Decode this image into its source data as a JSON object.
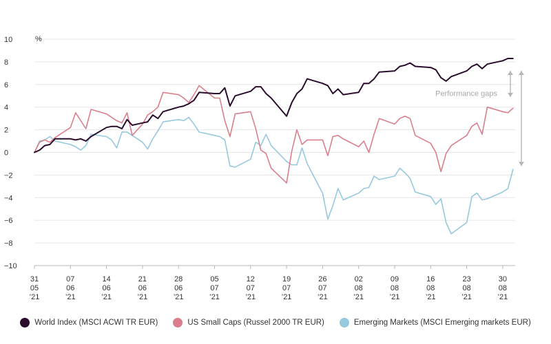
{
  "chart_data": {
    "type": "line",
    "unit": "%",
    "ylim": [
      -10,
      10
    ],
    "yticks": [
      "10",
      "8",
      "6",
      "4",
      "2",
      "0",
      "−2",
      "−4",
      "−6",
      "−8",
      "−10"
    ],
    "grid": true,
    "legend_position": "bottom",
    "x_tick_labels": [
      [
        "31",
        "05",
        "’21"
      ],
      [
        "07",
        "06",
        "’21"
      ],
      [
        "14",
        "06",
        "’21"
      ],
      [
        "21",
        "06",
        "’21"
      ],
      [
        "28",
        "06",
        "’21"
      ],
      [
        "05",
        "07",
        "’21"
      ],
      [
        "12",
        "07",
        "’21"
      ],
      [
        "19",
        "07",
        "’21"
      ],
      [
        "26",
        "07",
        "’21"
      ],
      [
        "02",
        "08",
        "’21"
      ],
      [
        "09",
        "08",
        "’21"
      ],
      [
        "16",
        "08",
        "’21"
      ],
      [
        "23",
        "08",
        "’21"
      ],
      [
        "30",
        "08",
        "’21"
      ]
    ],
    "annotation": "Performance gaps",
    "series": [
      {
        "name": "World Index (MSCI ACWI TR EUR)",
        "color": "#2a0c2c",
        "points": [
          [
            "2021-05-31",
            0.0
          ],
          [
            "2021-06-01",
            0.2
          ],
          [
            "2021-06-02",
            0.6
          ],
          [
            "2021-06-03",
            0.7
          ],
          [
            "2021-06-04",
            1.2
          ],
          [
            "2021-06-07",
            1.2
          ],
          [
            "2021-06-08",
            1.1
          ],
          [
            "2021-06-09",
            1.2
          ],
          [
            "2021-06-10",
            1.0
          ],
          [
            "2021-06-11",
            1.4
          ],
          [
            "2021-06-14",
            2.2
          ],
          [
            "2021-06-15",
            2.3
          ],
          [
            "2021-06-16",
            2.3
          ],
          [
            "2021-06-17",
            2.1
          ],
          [
            "2021-06-18",
            2.9
          ],
          [
            "2021-06-19",
            2.4
          ],
          [
            "2021-06-21",
            2.6
          ],
          [
            "2021-06-22",
            2.7
          ],
          [
            "2021-06-23",
            3.3
          ],
          [
            "2021-06-24",
            3.0
          ],
          [
            "2021-06-25",
            3.6
          ],
          [
            "2021-06-28",
            4.0
          ],
          [
            "2021-06-29",
            4.1
          ],
          [
            "2021-06-30",
            4.3
          ],
          [
            "2021-07-01",
            4.6
          ],
          [
            "2021-07-02",
            5.3
          ],
          [
            "2021-07-05",
            5.2
          ],
          [
            "2021-07-06",
            5.2
          ],
          [
            "2021-07-07",
            5.7
          ],
          [
            "2021-07-08",
            4.1
          ],
          [
            "2021-07-09",
            5.0
          ],
          [
            "2021-07-12",
            5.4
          ],
          [
            "2021-07-13",
            5.8
          ],
          [
            "2021-07-14",
            5.8
          ],
          [
            "2021-07-15",
            5.2
          ],
          [
            "2021-07-16",
            4.8
          ],
          [
            "2021-07-19",
            3.2
          ],
          [
            "2021-07-20",
            4.4
          ],
          [
            "2021-07-21",
            5.2
          ],
          [
            "2021-07-22",
            5.6
          ],
          [
            "2021-07-23",
            6.5
          ],
          [
            "2021-07-26",
            6.1
          ],
          [
            "2021-07-27",
            5.9
          ],
          [
            "2021-07-28",
            5.2
          ],
          [
            "2021-07-29",
            5.6
          ],
          [
            "2021-07-30",
            5.1
          ],
          [
            "2021-08-02",
            5.3
          ],
          [
            "2021-08-03",
            6.1
          ],
          [
            "2021-08-04",
            6.1
          ],
          [
            "2021-08-05",
            6.5
          ],
          [
            "2021-08-06",
            7.1
          ],
          [
            "2021-08-09",
            7.2
          ],
          [
            "2021-08-10",
            7.6
          ],
          [
            "2021-08-11",
            7.7
          ],
          [
            "2021-08-12",
            7.9
          ],
          [
            "2021-08-13",
            7.6
          ],
          [
            "2021-08-16",
            7.5
          ],
          [
            "2021-08-17",
            7.3
          ],
          [
            "2021-08-18",
            6.6
          ],
          [
            "2021-08-19",
            6.3
          ],
          [
            "2021-08-20",
            6.7
          ],
          [
            "2021-08-23",
            7.2
          ],
          [
            "2021-08-24",
            7.6
          ],
          [
            "2021-08-25",
            7.8
          ],
          [
            "2021-08-26",
            7.4
          ],
          [
            "2021-08-27",
            7.8
          ],
          [
            "2021-08-30",
            8.1
          ],
          [
            "2021-08-31",
            8.3
          ],
          [
            "2021-09-01",
            8.3
          ]
        ]
      },
      {
        "name": "US Small Caps (Russel 2000 TR EUR)",
        "color": "#d97f8c",
        "points": [
          [
            "2021-05-31",
            0.0
          ],
          [
            "2021-06-01",
            0.9
          ],
          [
            "2021-06-02",
            1.1
          ],
          [
            "2021-06-03",
            0.9
          ],
          [
            "2021-06-04",
            1.3
          ],
          [
            "2021-06-07",
            2.2
          ],
          [
            "2021-06-08",
            3.5
          ],
          [
            "2021-06-10",
            2.1
          ],
          [
            "2021-06-11",
            3.8
          ],
          [
            "2021-06-14",
            3.4
          ],
          [
            "2021-06-16",
            2.8
          ],
          [
            "2021-06-17",
            2.6
          ],
          [
            "2021-06-18",
            3.5
          ],
          [
            "2021-06-19",
            1.5
          ],
          [
            "2021-06-21",
            2.5
          ],
          [
            "2021-06-22",
            3.3
          ],
          [
            "2021-06-23",
            3.6
          ],
          [
            "2021-06-24",
            4.0
          ],
          [
            "2021-06-25",
            5.3
          ],
          [
            "2021-06-28",
            5.1
          ],
          [
            "2021-06-29",
            4.8
          ],
          [
            "2021-06-30",
            4.4
          ],
          [
            "2021-07-01",
            5.1
          ],
          [
            "2021-07-02",
            5.9
          ],
          [
            "2021-07-05",
            4.8
          ],
          [
            "2021-07-06",
            4.8
          ],
          [
            "2021-07-07",
            2.8
          ],
          [
            "2021-07-08",
            1.4
          ],
          [
            "2021-07-09",
            3.4
          ],
          [
            "2021-07-12",
            3.6
          ],
          [
            "2021-07-13",
            2.1
          ],
          [
            "2021-07-14",
            0.2
          ],
          [
            "2021-07-15",
            -0.1
          ],
          [
            "2021-07-16",
            -1.4
          ],
          [
            "2021-07-19",
            -2.7
          ],
          [
            "2021-07-20",
            0.1
          ],
          [
            "2021-07-21",
            2.0
          ],
          [
            "2021-07-22",
            0.7
          ],
          [
            "2021-07-23",
            1.1
          ],
          [
            "2021-07-26",
            1.1
          ],
          [
            "2021-07-27",
            -0.3
          ],
          [
            "2021-07-28",
            1.4
          ],
          [
            "2021-07-29",
            1.5
          ],
          [
            "2021-07-30",
            1.2
          ],
          [
            "2021-08-02",
            0.5
          ],
          [
            "2021-08-03",
            1.0
          ],
          [
            "2021-08-04",
            0.0
          ],
          [
            "2021-08-05",
            1.6
          ],
          [
            "2021-08-06",
            3.0
          ],
          [
            "2021-08-09",
            2.5
          ],
          [
            "2021-08-10",
            3.0
          ],
          [
            "2021-08-11",
            3.2
          ],
          [
            "2021-08-12",
            3.0
          ],
          [
            "2021-08-13",
            1.5
          ],
          [
            "2021-08-16",
            0.8
          ],
          [
            "2021-08-17",
            0.0
          ],
          [
            "2021-08-18",
            -1.7
          ],
          [
            "2021-08-19",
            -0.1
          ],
          [
            "2021-08-20",
            0.6
          ],
          [
            "2021-08-23",
            1.5
          ],
          [
            "2021-08-24",
            2.3
          ],
          [
            "2021-08-25",
            2.6
          ],
          [
            "2021-08-26",
            1.6
          ],
          [
            "2021-08-27",
            4.0
          ],
          [
            "2021-08-30",
            3.6
          ],
          [
            "2021-08-31",
            3.5
          ],
          [
            "2021-09-01",
            3.9
          ]
        ]
      },
      {
        "name": "Emerging Markets (MSCI Emerging markets EUR)",
        "color": "#96c8de",
        "points": [
          [
            "2021-05-31",
            0.0
          ],
          [
            "2021-06-01",
            1.0
          ],
          [
            "2021-06-02",
            1.1
          ],
          [
            "2021-06-03",
            1.4
          ],
          [
            "2021-06-04",
            1.0
          ],
          [
            "2021-06-07",
            0.7
          ],
          [
            "2021-06-08",
            0.5
          ],
          [
            "2021-06-09",
            0.2
          ],
          [
            "2021-06-10",
            0.6
          ],
          [
            "2021-06-11",
            1.6
          ],
          [
            "2021-06-14",
            1.4
          ],
          [
            "2021-06-15",
            1.1
          ],
          [
            "2021-06-16",
            0.4
          ],
          [
            "2021-06-17",
            1.8
          ],
          [
            "2021-06-18",
            1.8
          ],
          [
            "2021-06-21",
            0.9
          ],
          [
            "2021-06-22",
            0.3
          ],
          [
            "2021-06-23",
            1.2
          ],
          [
            "2021-06-24",
            1.9
          ],
          [
            "2021-06-25",
            2.7
          ],
          [
            "2021-06-28",
            2.9
          ],
          [
            "2021-06-29",
            2.8
          ],
          [
            "2021-06-30",
            3.1
          ],
          [
            "2021-07-01",
            2.5
          ],
          [
            "2021-07-02",
            1.8
          ],
          [
            "2021-07-05",
            1.5
          ],
          [
            "2021-07-06",
            1.4
          ],
          [
            "2021-07-07",
            1.1
          ],
          [
            "2021-07-08",
            -1.2
          ],
          [
            "2021-07-09",
            -1.3
          ],
          [
            "2021-07-12",
            -0.6
          ],
          [
            "2021-07-13",
            0.9
          ],
          [
            "2021-07-14",
            0.6
          ],
          [
            "2021-07-15",
            1.6
          ],
          [
            "2021-07-16",
            0.6
          ],
          [
            "2021-07-19",
            -0.8
          ],
          [
            "2021-07-20",
            -1.1
          ],
          [
            "2021-07-21",
            -1.1
          ],
          [
            "2021-07-22",
            0.4
          ],
          [
            "2021-07-23",
            -1.0
          ],
          [
            "2021-07-26",
            -3.6
          ],
          [
            "2021-07-27",
            -5.9
          ],
          [
            "2021-07-28",
            -4.7
          ],
          [
            "2021-07-29",
            -3.2
          ],
          [
            "2021-07-30",
            -4.2
          ],
          [
            "2021-08-02",
            -3.6
          ],
          [
            "2021-08-03",
            -3.2
          ],
          [
            "2021-08-04",
            -3.1
          ],
          [
            "2021-08-05",
            -2.1
          ],
          [
            "2021-08-06",
            -2.4
          ],
          [
            "2021-08-09",
            -2.1
          ],
          [
            "2021-08-10",
            -1.4
          ],
          [
            "2021-08-11",
            -1.8
          ],
          [
            "2021-08-12",
            -2.3
          ],
          [
            "2021-08-13",
            -3.5
          ],
          [
            "2021-08-16",
            -3.9
          ],
          [
            "2021-08-17",
            -4.6
          ],
          [
            "2021-08-18",
            -4.1
          ],
          [
            "2021-08-19",
            -6.2
          ],
          [
            "2021-08-20",
            -7.2
          ],
          [
            "2021-08-23",
            -6.2
          ],
          [
            "2021-08-24",
            -3.9
          ],
          [
            "2021-08-25",
            -3.6
          ],
          [
            "2021-08-26",
            -4.2
          ],
          [
            "2021-08-27",
            -4.1
          ],
          [
            "2021-08-30",
            -3.5
          ],
          [
            "2021-08-31",
            -3.2
          ],
          [
            "2021-09-01",
            -1.5
          ]
        ]
      }
    ]
  }
}
